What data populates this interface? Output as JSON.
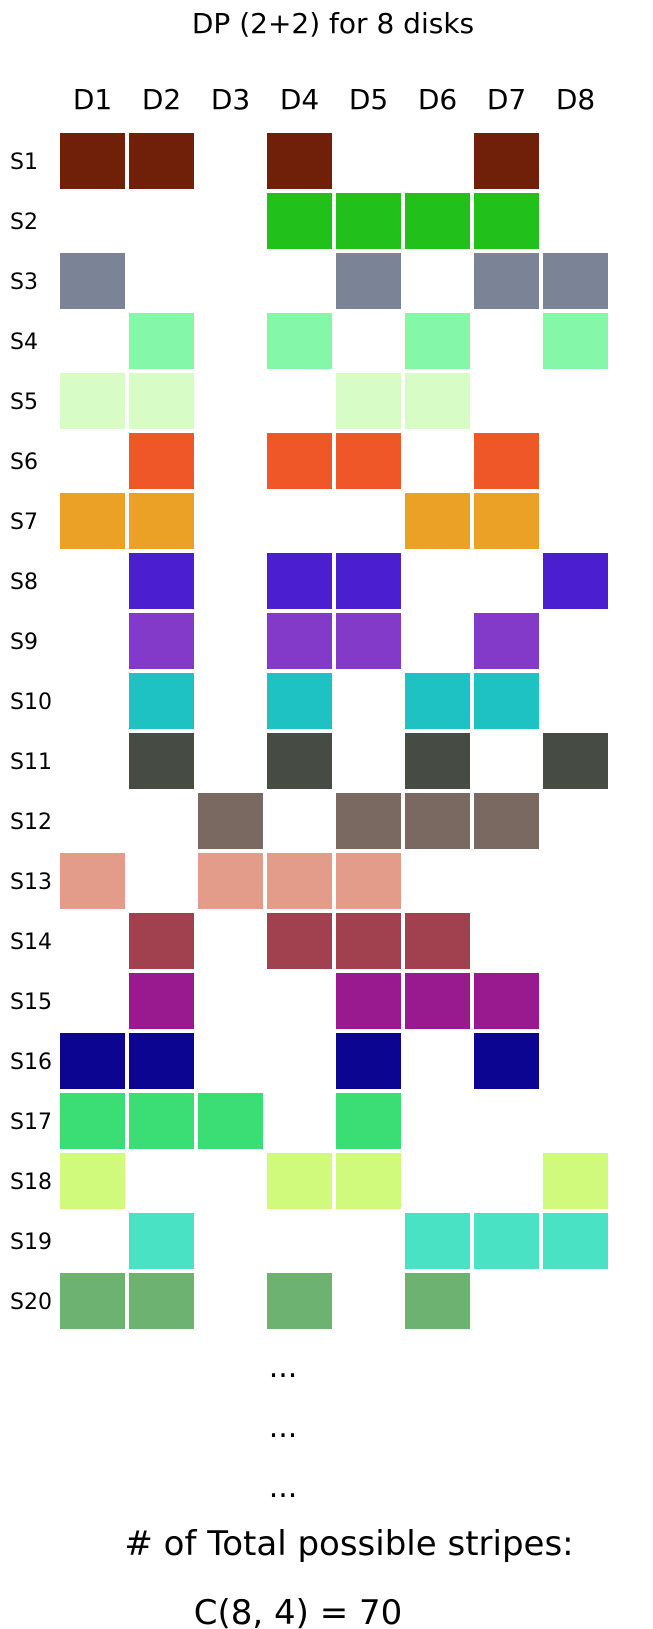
{
  "title": "DP (2+2) for 8 disks",
  "disks": [
    "D1",
    "D2",
    "D3",
    "D4",
    "D5",
    "D6",
    "D7",
    "D8"
  ],
  "stripes": [
    {
      "label": "S1",
      "color": "#702008",
      "disks": [
        1,
        2,
        4,
        7
      ]
    },
    {
      "label": "S2",
      "color": "#22c01a",
      "disks": [
        4,
        5,
        6,
        7
      ]
    },
    {
      "label": "S3",
      "color": "#7b8396",
      "disks": [
        1,
        5,
        7,
        8
      ]
    },
    {
      "label": "S4",
      "color": "#84f7a8",
      "disks": [
        2,
        4,
        6,
        8
      ]
    },
    {
      "label": "S5",
      "color": "#d7fcc6",
      "disks": [
        1,
        2,
        5,
        6
      ]
    },
    {
      "label": "S6",
      "color": "#ef5728",
      "disks": [
        2,
        4,
        5,
        7
      ]
    },
    {
      "label": "S7",
      "color": "#eba126",
      "disks": [
        1,
        2,
        6,
        7
      ]
    },
    {
      "label": "S8",
      "color": "#4b1ed0",
      "disks": [
        2,
        4,
        5,
        8
      ]
    },
    {
      "label": "S9",
      "color": "#843ac8",
      "disks": [
        2,
        4,
        5,
        7
      ]
    },
    {
      "label": "S10",
      "color": "#1fc2c2",
      "disks": [
        2,
        4,
        6,
        7
      ]
    },
    {
      "label": "S11",
      "color": "#464c44",
      "disks": [
        2,
        4,
        6,
        8
      ]
    },
    {
      "label": "S12",
      "color": "#7a6960",
      "disks": [
        3,
        5,
        6,
        7
      ]
    },
    {
      "label": "S13",
      "color": "#e39c89",
      "disks": [
        1,
        3,
        4,
        5
      ]
    },
    {
      "label": "S14",
      "color": "#a1404e",
      "disks": [
        2,
        4,
        5,
        6
      ]
    },
    {
      "label": "S15",
      "color": "#981a8e",
      "disks": [
        2,
        5,
        6,
        7
      ]
    },
    {
      "label": "S16",
      "color": "#0c0591",
      "disks": [
        1,
        2,
        5,
        7
      ]
    },
    {
      "label": "S17",
      "color": "#3bde74",
      "disks": [
        1,
        2,
        3,
        5
      ]
    },
    {
      "label": "S18",
      "color": "#d0fa7c",
      "disks": [
        1,
        4,
        5,
        8
      ]
    },
    {
      "label": "S19",
      "color": "#4ae2c4",
      "disks": [
        2,
        6,
        7,
        8
      ]
    },
    {
      "label": "S20",
      "color": "#6db270",
      "disks": [
        1,
        2,
        4,
        6
      ]
    }
  ],
  "ellipsis": [
    "...",
    "...",
    "..."
  ],
  "footer": {
    "line1": "# of Total possible stripes:",
    "line2": "C(8, 4) = 70"
  }
}
